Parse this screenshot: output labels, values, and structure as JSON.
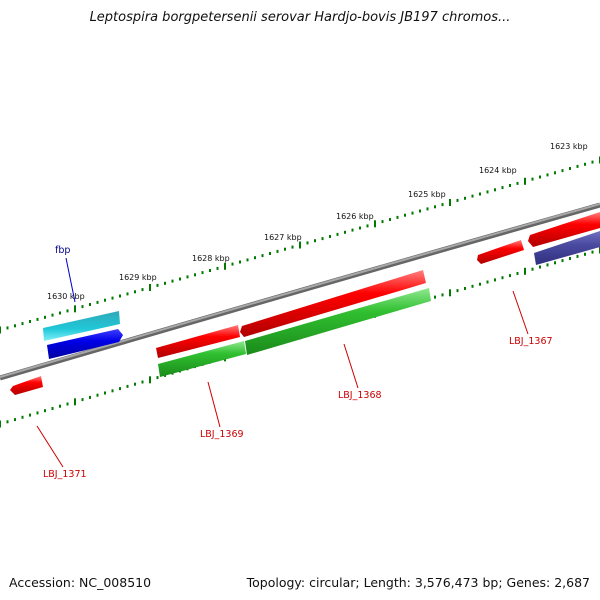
{
  "title": "Leptospira borgpetersenii serovar Hardjo-bovis JB197 chromos...",
  "footer": {
    "accession": "Accession: NC_008510",
    "stats": "Topology: circular; Length: 3,576,473 bp; Genes: 2,687"
  },
  "scale_labels": [
    "1623 kbp",
    "1624 kbp",
    "1625 kbp",
    "1626 kbp",
    "1627 kbp",
    "1628 kbp",
    "1629 kbp",
    "1630 kbp"
  ],
  "gene_labels": [
    {
      "text": "fbp",
      "color": "#00008b"
    },
    {
      "text": "LBJ_1367",
      "color": "#cc0000"
    },
    {
      "text": "LBJ_1368",
      "color": "#cc0000"
    },
    {
      "text": "LBJ_1369",
      "color": "#cc0000"
    },
    {
      "text": "LBJ_1371",
      "color": "#cc0000"
    }
  ],
  "colors": {
    "backbone": "#808080",
    "cds_red": "#e60000",
    "cds_green": "#2fb82f",
    "cds_blue": "#0000e0",
    "cds_cyan": "#20b8c8",
    "cds_slate": "#4a4aa0",
    "tick_green": "#007a00"
  }
}
